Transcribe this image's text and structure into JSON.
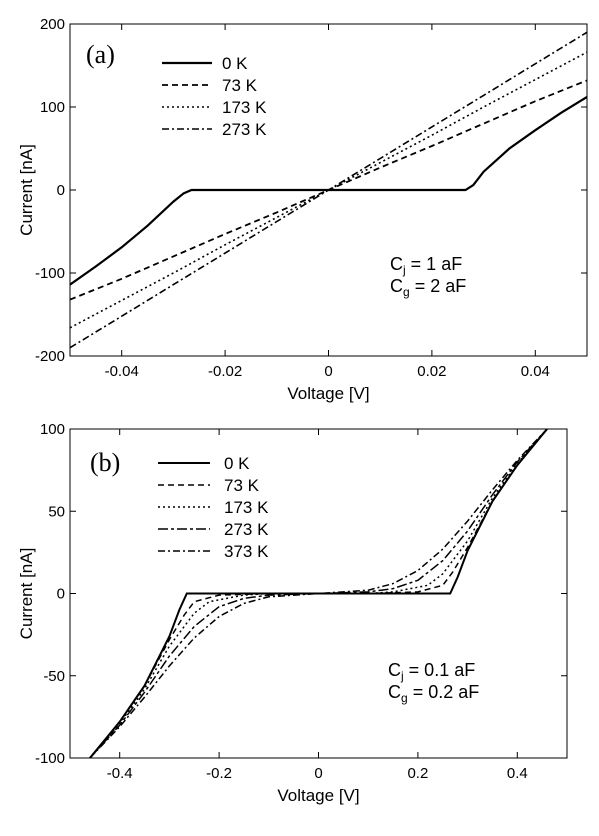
{
  "chart_data": [
    {
      "type": "line",
      "panel_label": "(a)",
      "xlabel": "Voltage [V]",
      "ylabel": "Current [nA]",
      "xlim": [
        -0.05,
        0.05
      ],
      "ylim": [
        -200,
        200
      ],
      "x_ticks": [
        -0.04,
        -0.02,
        0,
        0.02,
        0.04
      ],
      "x_tick_labels": [
        "-0.04",
        "-0.02",
        "0",
        "0.02",
        "0.04"
      ],
      "y_ticks": [
        -200,
        -100,
        0,
        100,
        200
      ],
      "y_tick_labels": [
        "-200",
        "-100",
        "0",
        "100",
        "200"
      ],
      "grid": false,
      "legend_position": "top-left",
      "annotation": [
        {
          "main": "C",
          "sub": "j",
          "rest": " = 1 aF"
        },
        {
          "main": "C",
          "sub": "g",
          "rest": " = 2 aF"
        }
      ],
      "series": [
        {
          "name": "0 K",
          "dash": "solid",
          "width": 2.2,
          "x": [
            -0.05,
            -0.045,
            -0.04,
            -0.035,
            -0.03,
            -0.028,
            -0.0265,
            -0.02,
            -0.01,
            0,
            0.01,
            0.02,
            0.0265,
            0.028,
            0.03,
            0.035,
            0.04,
            0.045,
            0.05
          ],
          "y": [
            -114,
            -92,
            -69,
            -43,
            -14,
            -4,
            0,
            0,
            0,
            0,
            0,
            0,
            0,
            6,
            22,
            50,
            72,
            93,
            112
          ]
        },
        {
          "name": "73 K",
          "dash": "6 4",
          "width": 1.8,
          "x": [
            -0.05,
            -0.04,
            -0.03,
            -0.02,
            -0.01,
            0,
            0.01,
            0.02,
            0.03,
            0.04,
            0.05
          ],
          "y": [
            -132,
            -107,
            -80,
            -53,
            -27,
            0,
            27,
            53,
            80,
            107,
            132
          ]
        },
        {
          "name": "173 K",
          "dash": "2 3",
          "width": 1.6,
          "x": [
            -0.05,
            -0.04,
            -0.03,
            -0.02,
            -0.01,
            0,
            0.01,
            0.02,
            0.03,
            0.04,
            0.05
          ],
          "y": [
            -166,
            -133,
            -100,
            -66,
            -33,
            0,
            33,
            66,
            100,
            133,
            166
          ]
        },
        {
          "name": "273 K",
          "dash": "7 3 2 3",
          "width": 1.6,
          "x": [
            -0.05,
            -0.04,
            -0.03,
            -0.02,
            -0.01,
            0,
            0.01,
            0.02,
            0.03,
            0.04,
            0.05
          ],
          "y": [
            -190,
            -152,
            -114,
            -76,
            -38,
            0,
            38,
            76,
            114,
            152,
            190
          ]
        }
      ]
    },
    {
      "type": "line",
      "panel_label": "(b)",
      "xlabel": "Voltage [V]",
      "ylabel": "Current [nA]",
      "xlim": [
        -0.5,
        0.5
      ],
      "ylim": [
        -100,
        100
      ],
      "x_ticks": [
        -0.4,
        -0.2,
        0,
        0.2,
        0.4
      ],
      "x_tick_labels": [
        "-0.4",
        "-0.2",
        "0",
        "0.2",
        "0.4"
      ],
      "y_ticks": [
        -100,
        -50,
        0,
        50,
        100
      ],
      "y_tick_labels": [
        "-100",
        "-50",
        "0",
        "50",
        "100"
      ],
      "grid": false,
      "legend_position": "top-left",
      "annotation": [
        {
          "main": "C",
          "sub": "j",
          "rest": " = 0.1 aF"
        },
        {
          "main": "C",
          "sub": "g",
          "rest": " = 0.2 aF"
        }
      ],
      "series": [
        {
          "name": "0 K",
          "dash": "solid",
          "width": 2.0,
          "x": [
            -0.46,
            -0.4,
            -0.35,
            -0.3,
            -0.28,
            -0.265,
            -0.2,
            -0.1,
            0,
            0.1,
            0.2,
            0.265,
            0.28,
            0.3,
            0.35,
            0.4,
            0.46
          ],
          "y": [
            -100,
            -78,
            -56,
            -26,
            -10,
            0,
            0,
            0,
            0,
            0,
            0,
            0,
            10,
            26,
            56,
            78,
            100
          ]
        },
        {
          "name": "73 K",
          "dash": "6 4",
          "width": 1.5,
          "x": [
            -0.46,
            -0.4,
            -0.35,
            -0.3,
            -0.27,
            -0.25,
            -0.2,
            -0.1,
            0,
            0.1,
            0.2,
            0.25,
            0.27,
            0.3,
            0.35,
            0.4,
            0.46
          ],
          "y": [
            -100,
            -78,
            -56,
            -28,
            -13,
            -5,
            -1,
            0,
            0,
            0,
            1,
            5,
            13,
            28,
            56,
            78,
            100
          ]
        },
        {
          "name": "173 K",
          "dash": "2 3",
          "width": 1.5,
          "x": [
            -0.46,
            -0.4,
            -0.35,
            -0.3,
            -0.27,
            -0.25,
            -0.22,
            -0.15,
            -0.1,
            0,
            0.1,
            0.15,
            0.22,
            0.25,
            0.27,
            0.3,
            0.35,
            0.4,
            0.46
          ],
          "y": [
            -100,
            -79,
            -58,
            -32,
            -20,
            -12,
            -5,
            -1,
            0,
            0,
            0,
            1,
            5,
            12,
            20,
            32,
            58,
            79,
            100
          ]
        },
        {
          "name": "273 K",
          "dash": "10 3 3 3",
          "width": 1.5,
          "x": [
            -0.46,
            -0.4,
            -0.35,
            -0.3,
            -0.25,
            -0.2,
            -0.15,
            -0.1,
            0,
            0.1,
            0.15,
            0.2,
            0.25,
            0.3,
            0.35,
            0.4,
            0.46
          ],
          "y": [
            -100,
            -80,
            -60,
            -38,
            -20,
            -8,
            -3,
            -1,
            0,
            1,
            3,
            8,
            20,
            38,
            60,
            80,
            100
          ]
        },
        {
          "name": "373 K",
          "dash": "7 3 2 3",
          "width": 1.5,
          "x": [
            -0.46,
            -0.4,
            -0.35,
            -0.3,
            -0.25,
            -0.2,
            -0.15,
            -0.1,
            0,
            0.1,
            0.15,
            0.2,
            0.25,
            0.3,
            0.35,
            0.4,
            0.46
          ],
          "y": [
            -100,
            -81,
            -63,
            -44,
            -27,
            -14,
            -6,
            -2,
            0,
            2,
            6,
            14,
            27,
            44,
            63,
            81,
            100
          ]
        }
      ]
    }
  ]
}
